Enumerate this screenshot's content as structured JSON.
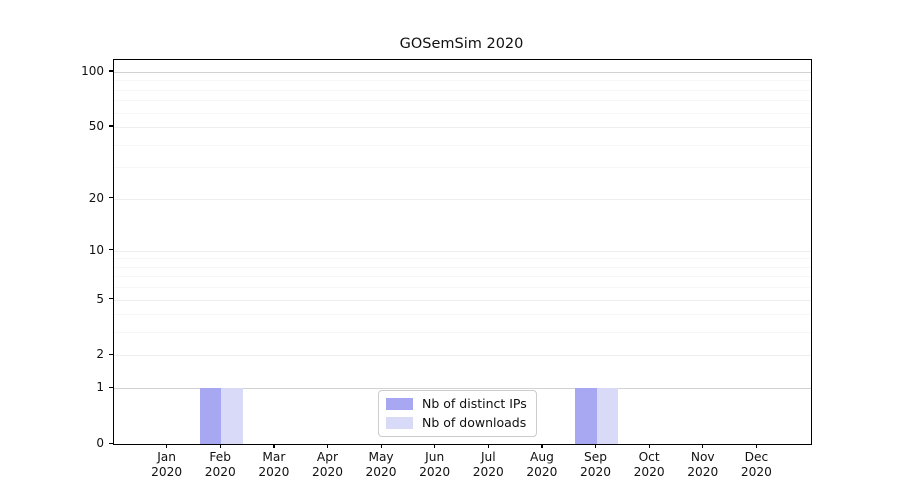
{
  "chart_data": {
    "type": "bar",
    "title": "GOSemSim 2020",
    "categories": [
      "Jan",
      "Feb",
      "Mar",
      "Apr",
      "May",
      "Jun",
      "Jul",
      "Aug",
      "Sep",
      "Oct",
      "Nov",
      "Dec"
    ],
    "year_label": "2020",
    "series": [
      {
        "name": "Nb of distinct IPs",
        "color": "#a7a7f2",
        "values": [
          0,
          1,
          0,
          0,
          0,
          0,
          0,
          0,
          1,
          0,
          0,
          0
        ]
      },
      {
        "name": "Nb of downloads",
        "color": "#d9d9f8",
        "values": [
          0,
          1,
          0,
          0,
          0,
          0,
          0,
          0,
          1,
          0,
          0,
          0
        ]
      }
    ],
    "y_ticks": [
      0,
      1,
      2,
      5,
      10,
      20,
      50,
      100
    ],
    "minor_y_gridlines": [
      3,
      4,
      6,
      7,
      8,
      9,
      30,
      40,
      60,
      70,
      80,
      90
    ],
    "scale": "log1p",
    "ylim": [
      0,
      115
    ],
    "grid": "horizontal",
    "legend_position": "lower center",
    "colors": {
      "axis": "#000000",
      "major_gridline": "#eeeeee",
      "emphasis_gridline": "#d2d2d2",
      "minor_gridline": "#f7f7f7",
      "text": "#111111"
    }
  }
}
